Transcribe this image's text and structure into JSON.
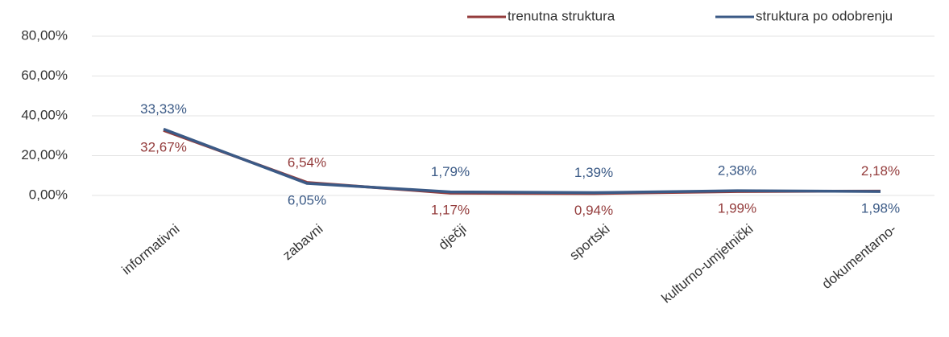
{
  "chart_data": {
    "type": "line",
    "categories": [
      "informativni",
      "zabavni",
      "dječji",
      "sportski",
      "kulturno-umjetnički",
      "dokumentarno-"
    ],
    "series": [
      {
        "name": "trenutna struktura",
        "color": "#943c3c",
        "values": [
          32.67,
          6.54,
          1.17,
          0.94,
          1.99,
          2.18
        ],
        "value_labels": [
          "32,67%",
          "6,54%",
          "1,17%",
          "0,94%",
          "1,99%",
          "2,18%"
        ]
      },
      {
        "name": "struktura po odobrenju",
        "color": "#3b5a86",
        "values": [
          33.33,
          6.05,
          1.79,
          1.39,
          2.38,
          1.98
        ],
        "value_labels": [
          "33,33%",
          "6,05%",
          "1,79%",
          "1,39%",
          "2,38%",
          "1,98%"
        ]
      }
    ],
    "ylim": [
      0,
      80
    ],
    "yticks": [
      {
        "value": 0,
        "label": "0,00%"
      },
      {
        "value": 20,
        "label": "20,00%"
      },
      {
        "value": 40,
        "label": "40,00%"
      },
      {
        "value": 60,
        "label": "60,00%"
      },
      {
        "value": 80,
        "label": "80,00%"
      }
    ],
    "grid": true,
    "legend": "top-right"
  }
}
